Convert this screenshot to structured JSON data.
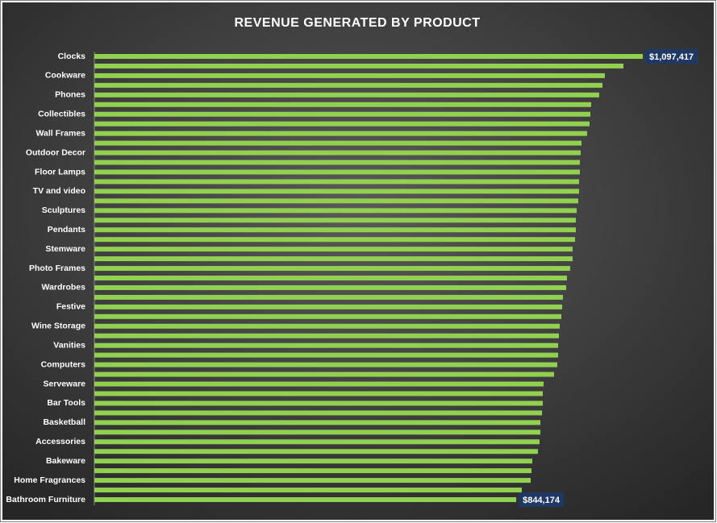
{
  "chart_data": {
    "type": "hbar",
    "title": "REVENUE GENERATED BY PRODUCT",
    "color": "#92d050",
    "categories": [
      "Clocks",
      null,
      "Cookware",
      null,
      "Phones",
      null,
      "Collectibles",
      null,
      "Wall Frames",
      null,
      "Outdoor Decor",
      null,
      "Floor Lamps",
      null,
      "TV and video",
      null,
      "Sculptures",
      null,
      "Pendants",
      null,
      "Stemware",
      null,
      "Photo Frames",
      null,
      "Wardrobes",
      null,
      "Festive",
      null,
      "Wine Storage",
      null,
      "Vanities",
      null,
      "Computers",
      null,
      "Serveware",
      null,
      "Bar Tools",
      null,
      "Basketball",
      null,
      "Accessories",
      null,
      "Bakeware",
      null,
      "Home Fragrances",
      null,
      "Bathroom Furniture"
    ],
    "values": [
      1097417,
      1058700,
      1021500,
      1016700,
      1010200,
      994100,
      992500,
      990900,
      986000,
      974800,
      973100,
      971500,
      971500,
      969900,
      969900,
      968300,
      965100,
      963500,
      963500,
      961800,
      957000,
      957000,
      952100,
      945700,
      944100,
      937600,
      936000,
      934400,
      931200,
      929600,
      928000,
      928000,
      926300,
      919900,
      898900,
      897300,
      897300,
      895700,
      892500,
      892500,
      890800,
      887600,
      876300,
      874700,
      873100,
      855300,
      844174
    ],
    "value_labels": [
      "$1,097,417",
      null,
      null,
      null,
      null,
      null,
      null,
      null,
      null,
      null,
      null,
      null,
      null,
      null,
      null,
      null,
      null,
      null,
      null,
      null,
      null,
      null,
      null,
      null,
      null,
      null,
      null,
      null,
      null,
      null,
      null,
      null,
      null,
      null,
      null,
      null,
      null,
      null,
      null,
      null,
      null,
      null,
      null,
      null,
      null,
      null,
      "$844,174"
    ]
  }
}
